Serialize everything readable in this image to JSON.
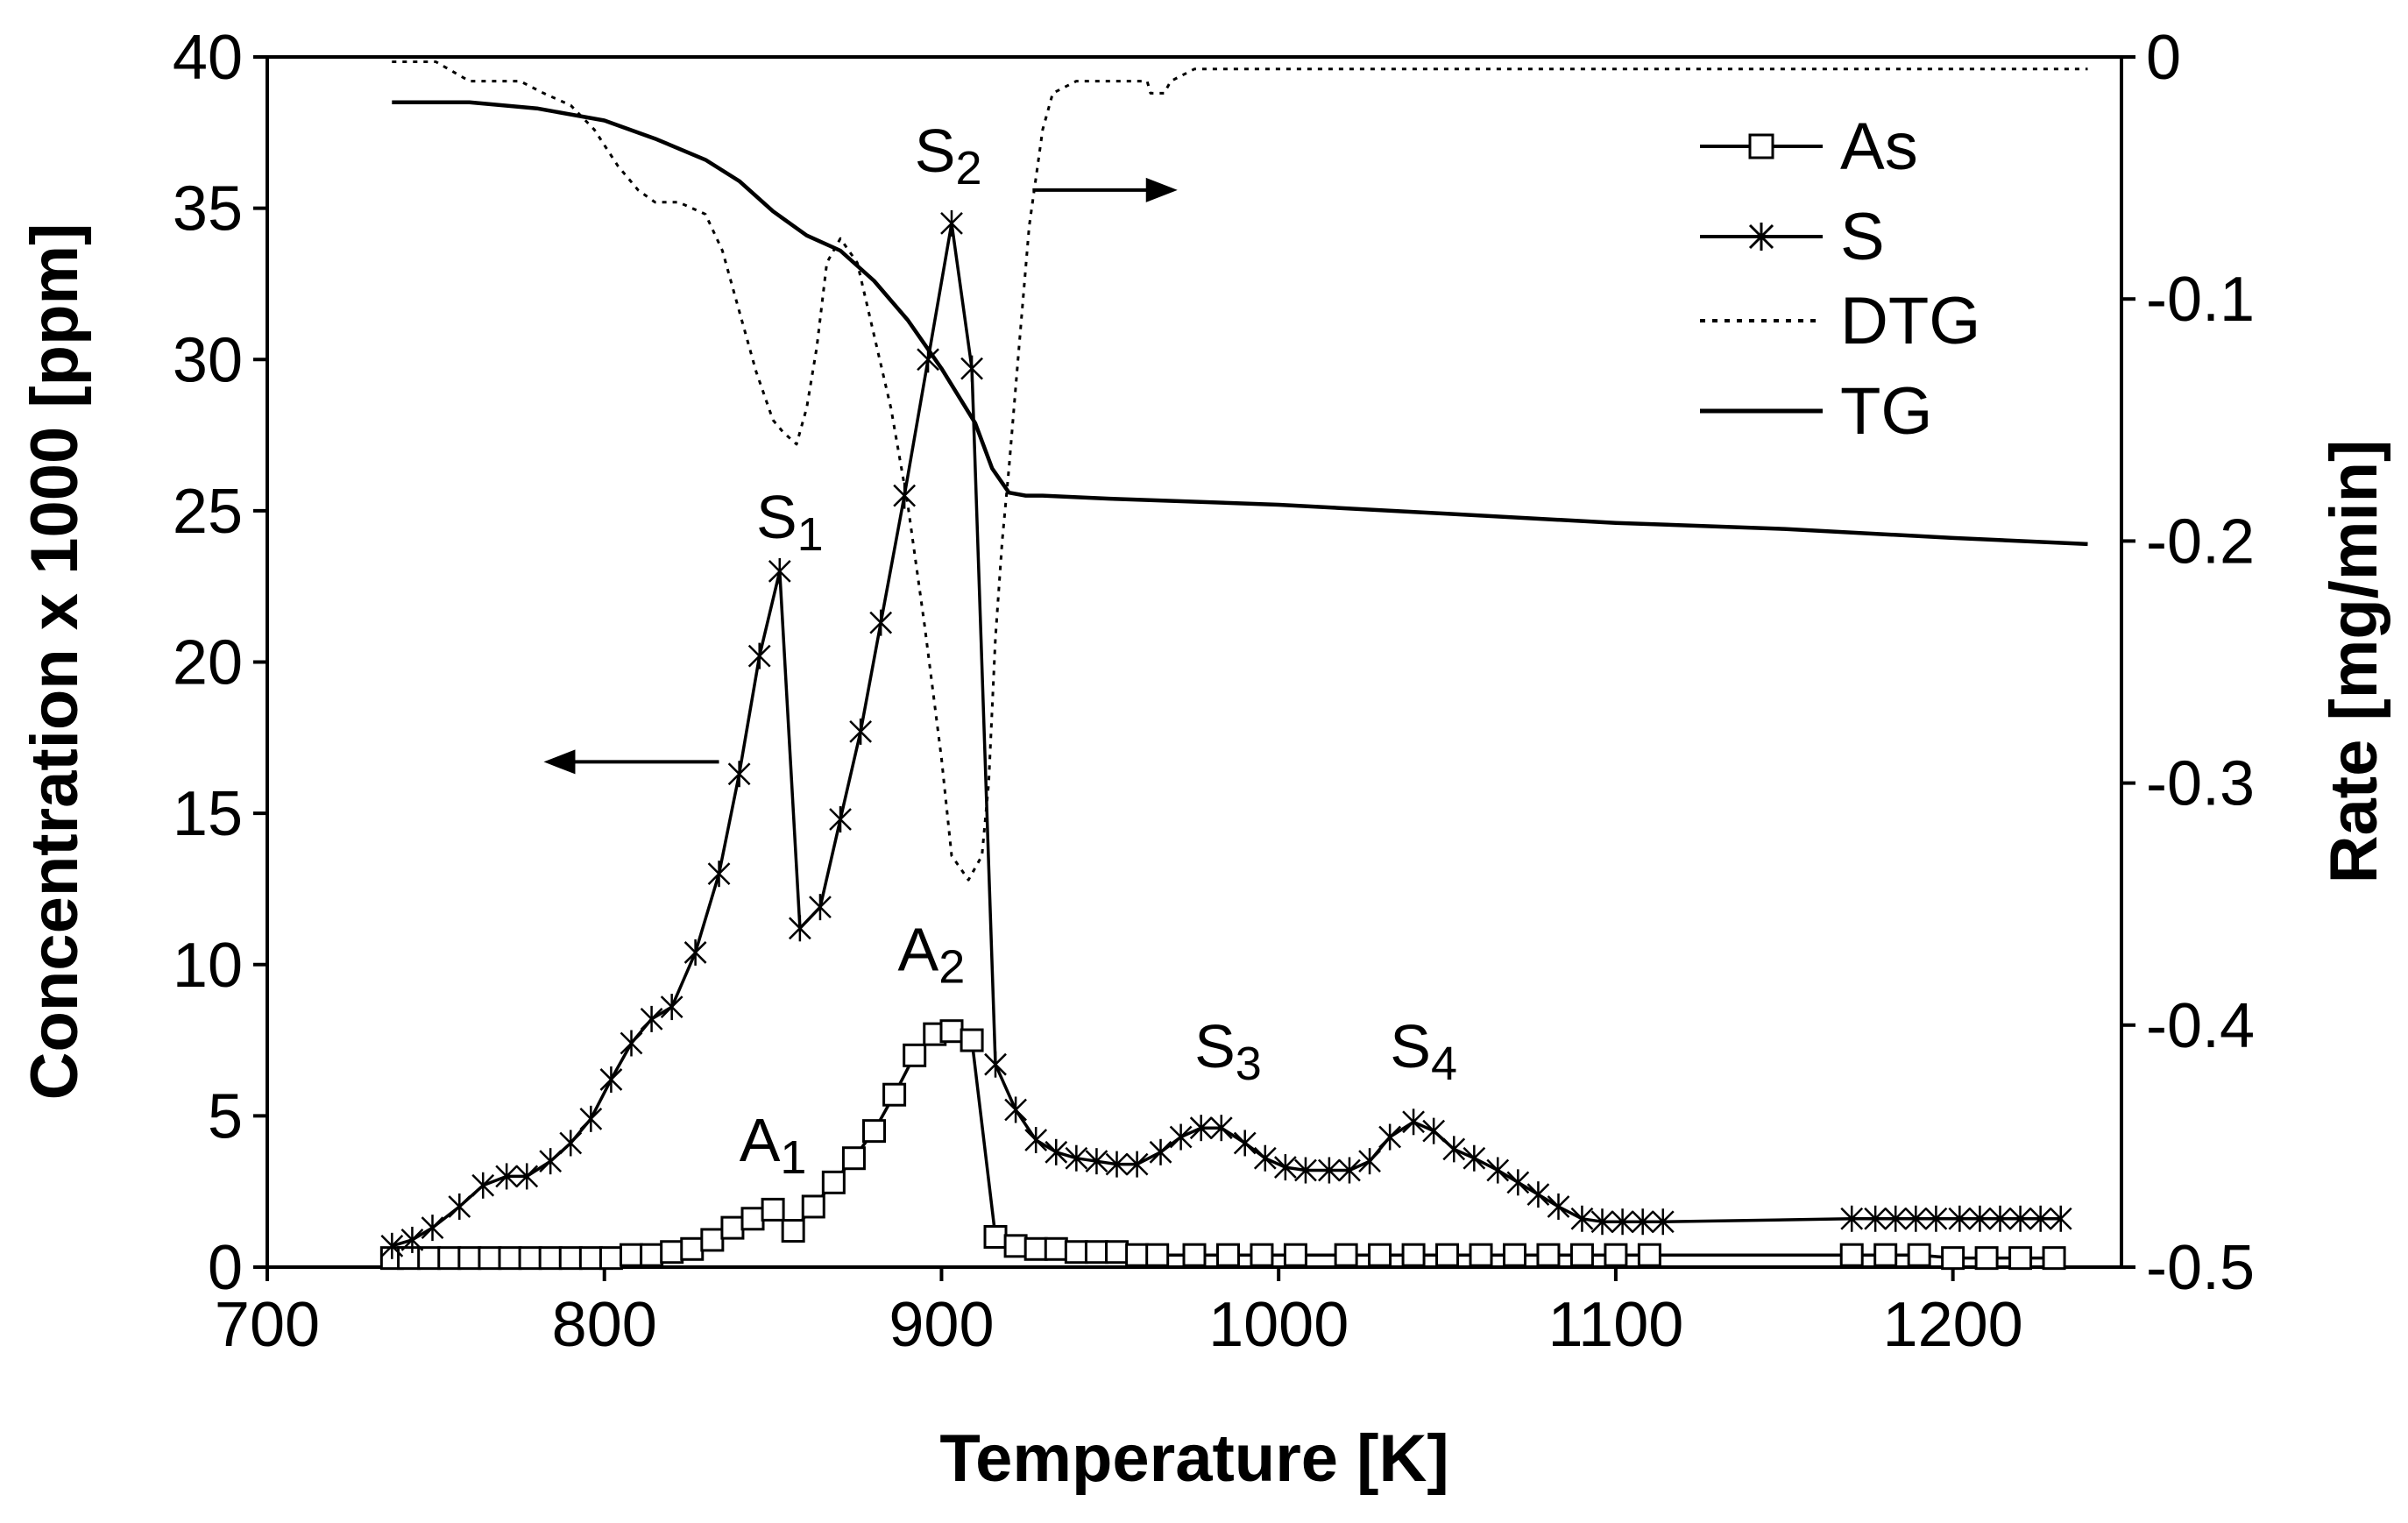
{
  "chart_data": {
    "type": "line",
    "xlabel": "Temperature [K]",
    "ylabel_left": "Concentration x 1000 [ppm]",
    "ylabel_right": "Rate [mg/min]",
    "xlim": [
      700,
      1250
    ],
    "ylim_left": [
      0,
      40
    ],
    "ylim_right": [
      -0.5,
      0
    ],
    "x_ticks": [
      700,
      800,
      900,
      1000,
      1100,
      1200
    ],
    "y_left_ticks": [
      0,
      5,
      10,
      15,
      20,
      25,
      30,
      35,
      40
    ],
    "y_right_ticks": [
      -0.5,
      -0.4,
      -0.3,
      -0.2,
      -0.1,
      0
    ],
    "y_right_tick_labels": [
      "-0.5",
      "-0.4",
      "-0.3",
      "-0.2",
      "-0.1",
      "0"
    ],
    "legend": [
      "As",
      "S",
      "DTG",
      "TG"
    ],
    "legend_position": "top-right",
    "series": [
      {
        "name": "As",
        "axis": "left",
        "marker": "square",
        "style": "solid",
        "x": [
          737,
          742,
          748,
          754,
          760,
          766,
          772,
          778,
          784,
          790,
          796,
          802,
          808,
          814,
          820,
          826,
          832,
          838,
          844,
          850,
          856,
          862,
          868,
          874,
          880,
          886,
          892,
          898,
          903,
          909,
          916,
          922,
          928,
          934,
          940,
          946,
          952,
          958,
          964,
          975,
          985,
          995,
          1005,
          1020,
          1030,
          1040,
          1050,
          1060,
          1070,
          1080,
          1090,
          1100,
          1110,
          1170,
          1180,
          1190,
          1200,
          1210,
          1220,
          1230
        ],
        "y": [
          0.3,
          0.3,
          0.3,
          0.3,
          0.3,
          0.3,
          0.3,
          0.3,
          0.3,
          0.3,
          0.3,
          0.3,
          0.4,
          0.4,
          0.5,
          0.6,
          0.9,
          1.3,
          1.6,
          1.9,
          1.2,
          2.0,
          2.8,
          3.6,
          4.5,
          5.7,
          7.0,
          7.7,
          7.8,
          7.5,
          1.0,
          0.7,
          0.6,
          0.6,
          0.5,
          0.5,
          0.5,
          0.4,
          0.4,
          0.4,
          0.4,
          0.4,
          0.4,
          0.4,
          0.4,
          0.4,
          0.4,
          0.4,
          0.4,
          0.4,
          0.4,
          0.4,
          0.4,
          0.4,
          0.4,
          0.4,
          0.3,
          0.3,
          0.3,
          0.3
        ]
      },
      {
        "name": "S",
        "axis": "left",
        "marker": "asterisk",
        "style": "solid",
        "x": [
          737,
          743,
          749,
          757,
          764,
          771,
          777,
          784,
          790,
          796,
          802,
          808,
          814,
          820,
          827,
          834,
          840,
          846,
          852,
          858,
          864,
          870,
          876,
          882,
          889,
          896,
          903,
          909,
          916,
          922,
          928,
          934,
          940,
          946,
          952,
          958,
          965,
          971,
          977,
          983,
          990,
          996,
          1002,
          1008,
          1015,
          1021,
          1027,
          1033,
          1040,
          1046,
          1052,
          1058,
          1065,
          1071,
          1077,
          1083,
          1090,
          1096,
          1102,
          1108,
          1114,
          1170,
          1177,
          1183,
          1189,
          1195,
          1202,
          1208,
          1214,
          1220,
          1226,
          1232
        ],
        "y": [
          0.7,
          0.9,
          1.3,
          2.0,
          2.7,
          3.0,
          3.0,
          3.5,
          4.1,
          4.9,
          6.2,
          7.4,
          8.2,
          8.6,
          10.4,
          13.0,
          16.3,
          20.2,
          23.0,
          11.2,
          11.9,
          14.8,
          17.7,
          21.3,
          25.5,
          30.0,
          34.5,
          29.7,
          6.7,
          5.2,
          4.2,
          3.8,
          3.6,
          3.5,
          3.4,
          3.4,
          3.8,
          4.3,
          4.6,
          4.6,
          4.1,
          3.6,
          3.3,
          3.2,
          3.2,
          3.2,
          3.5,
          4.3,
          4.8,
          4.5,
          3.9,
          3.6,
          3.2,
          2.8,
          2.4,
          2.0,
          1.6,
          1.5,
          1.5,
          1.5,
          1.5,
          1.6,
          1.6,
          1.6,
          1.6,
          1.6,
          1.6,
          1.6,
          1.6,
          1.6,
          1.6,
          1.6
        ]
      },
      {
        "name": "DTG",
        "axis": "right",
        "style": "dotted",
        "x": [
          737,
          750,
          755,
          760,
          768,
          775,
          782,
          790,
          797,
          804,
          810,
          815,
          822,
          830,
          835,
          840,
          845,
          850,
          853,
          857,
          860,
          863,
          866,
          870,
          875,
          880,
          885,
          890,
          895,
          900,
          903,
          908,
          912,
          914,
          916,
          918,
          920,
          923,
          926,
          930,
          933,
          940,
          960,
          961,
          962,
          966,
          968,
          975,
          1000,
          1100,
          1200,
          1240
        ],
        "y": [
          -0.002,
          -0.002,
          -0.006,
          -0.01,
          -0.01,
          -0.01,
          -0.015,
          -0.02,
          -0.03,
          -0.045,
          -0.055,
          -0.06,
          -0.06,
          -0.065,
          -0.08,
          -0.105,
          -0.13,
          -0.15,
          -0.155,
          -0.16,
          -0.145,
          -0.12,
          -0.085,
          -0.075,
          -0.085,
          -0.115,
          -0.145,
          -0.185,
          -0.235,
          -0.29,
          -0.33,
          -0.34,
          -0.33,
          -0.3,
          -0.24,
          -0.2,
          -0.17,
          -0.12,
          -0.07,
          -0.03,
          -0.015,
          -0.01,
          -0.01,
          -0.01,
          -0.015,
          -0.015,
          -0.01,
          -0.005,
          -0.005,
          -0.005,
          -0.005,
          -0.005
        ]
      },
      {
        "name": "TG",
        "axis": "left",
        "style": "solid",
        "x": [
          737,
          760,
          780,
          800,
          815,
          830,
          840,
          850,
          860,
          870,
          880,
          890,
          900,
          910,
          915,
          920,
          925,
          930,
          950,
          1000,
          1050,
          1100,
          1150,
          1200,
          1240
        ],
        "y": [
          38.5,
          38.5,
          38.3,
          37.9,
          37.3,
          36.6,
          35.9,
          34.9,
          34.1,
          33.6,
          32.6,
          31.3,
          29.7,
          27.9,
          26.4,
          25.6,
          25.5,
          25.5,
          25.4,
          25.2,
          24.9,
          24.6,
          24.4,
          24.1,
          23.9
        ]
      }
    ],
    "annotations": [
      {
        "base": "S",
        "sub": "1",
        "x": 855,
        "y": 24.1
      },
      {
        "base": "S",
        "sub": "2",
        "x": 902,
        "y": 36.2
      },
      {
        "base": "S",
        "sub": "3",
        "x": 985,
        "y": 6.6
      },
      {
        "base": "S",
        "sub": "4",
        "x": 1043,
        "y": 6.6
      },
      {
        "base": "A",
        "sub": "1",
        "x": 850,
        "y": 3.5
      },
      {
        "base": "A",
        "sub": "2",
        "x": 897,
        "y": 9.8
      }
    ],
    "arrows": [
      {
        "direction": "left",
        "axis": "left",
        "x_from": 834,
        "x_to": 782,
        "y": 16.7
      },
      {
        "direction": "right",
        "axis": "right",
        "x_from": 927,
        "x_to": 970,
        "y": -0.055
      }
    ]
  }
}
